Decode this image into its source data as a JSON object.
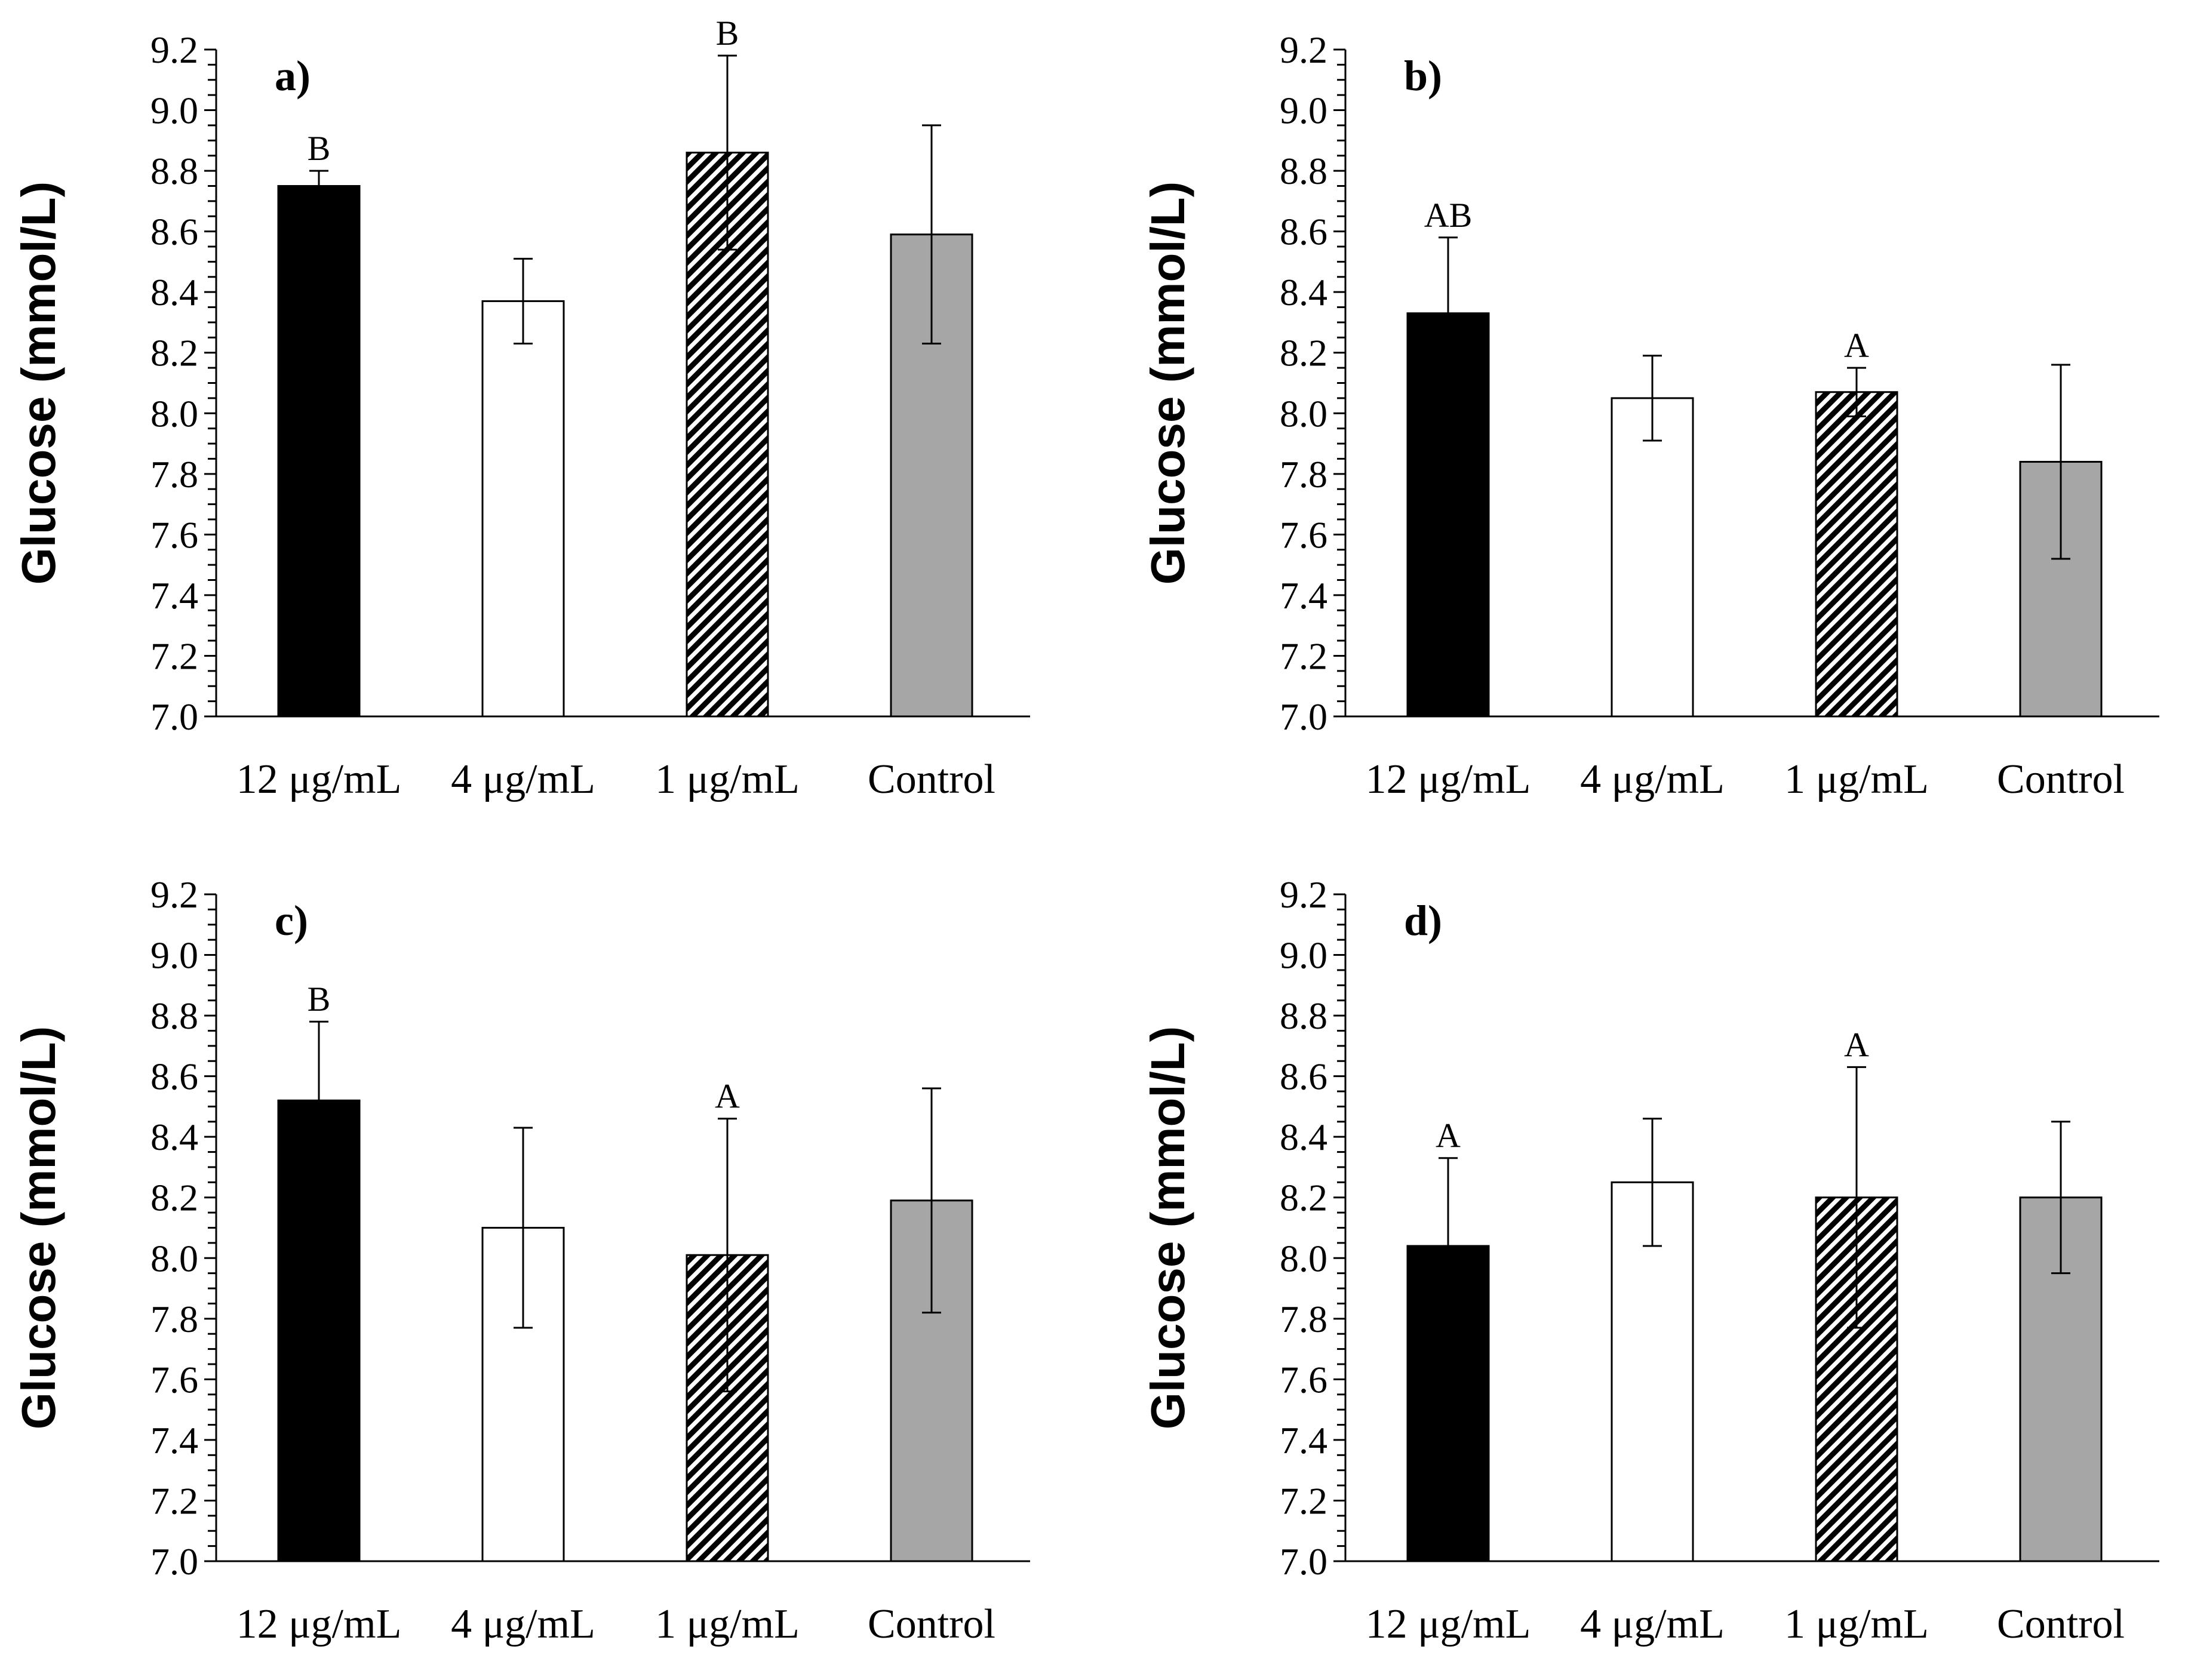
{
  "chart_data": [
    {
      "type": "bar",
      "panel": "a)",
      "ylabel": "Glucose (mmol/L)",
      "ylim": [
        7.0,
        9.2
      ],
      "yticks": [
        "7.0",
        "7.2",
        "7.4",
        "7.6",
        "7.8",
        "8.0",
        "8.2",
        "8.4",
        "8.6",
        "8.8",
        "9.0",
        "9.2"
      ],
      "categories": [
        "12 μg/mL",
        "4 μg/mL",
        "1 μg/mL",
        "Control"
      ],
      "values": [
        8.75,
        8.37,
        8.86,
        8.59
      ],
      "errors": [
        0.05,
        0.14,
        0.32,
        0.36
      ],
      "significance": [
        "B",
        "",
        "B",
        ""
      ]
    },
    {
      "type": "bar",
      "panel": "b)",
      "ylabel": "Glucose (mmol/L)",
      "ylim": [
        7.0,
        9.2
      ],
      "yticks": [
        "7.0",
        "7.2",
        "7.4",
        "7.6",
        "7.8",
        "8.0",
        "8.2",
        "8.4",
        "8.6",
        "8.8",
        "9.0",
        "9.2"
      ],
      "categories": [
        "12 μg/mL",
        "4 μg/mL",
        "1 μg/mL",
        "Control"
      ],
      "values": [
        8.33,
        8.05,
        8.07,
        7.84
      ],
      "errors": [
        0.25,
        0.14,
        0.08,
        0.32
      ],
      "significance": [
        "AB",
        "",
        "A",
        ""
      ]
    },
    {
      "type": "bar",
      "panel": "c)",
      "ylabel": "Glucose (mmol/L)",
      "ylim": [
        7.0,
        9.2
      ],
      "yticks": [
        "7.0",
        "7.2",
        "7.4",
        "7.6",
        "7.8",
        "8.0",
        "8.2",
        "8.4",
        "8.6",
        "8.8",
        "9.0",
        "9.2"
      ],
      "categories": [
        "12 μg/mL",
        "4 μg/mL",
        "1 μg/mL",
        "Control"
      ],
      "values": [
        8.52,
        8.1,
        8.01,
        8.19
      ],
      "errors": [
        0.26,
        0.33,
        0.45,
        0.37
      ],
      "significance": [
        "B",
        "",
        "A",
        ""
      ]
    },
    {
      "type": "bar",
      "panel": "d)",
      "ylabel": "Glucose (mmol/L)",
      "ylim": [
        7.0,
        9.2
      ],
      "yticks": [
        "7.0",
        "7.2",
        "7.4",
        "7.6",
        "7.8",
        "8.0",
        "8.2",
        "8.4",
        "8.6",
        "8.8",
        "9.0",
        "9.2"
      ],
      "categories": [
        "12 μg/mL",
        "4 μg/mL",
        "1 μg/mL",
        "Control"
      ],
      "values": [
        8.04,
        8.25,
        8.2,
        8.2
      ],
      "errors": [
        0.29,
        0.21,
        0.43,
        0.25
      ],
      "significance": [
        "A",
        "",
        "A",
        ""
      ]
    }
  ],
  "bar_styles": [
    {
      "fill": "#000000",
      "pattern": "solid"
    },
    {
      "fill": "#ffffff",
      "pattern": "solid"
    },
    {
      "fill": "#ffffff",
      "pattern": "diagonal-hatch"
    },
    {
      "fill": "#a6a6a6",
      "pattern": "solid"
    }
  ]
}
